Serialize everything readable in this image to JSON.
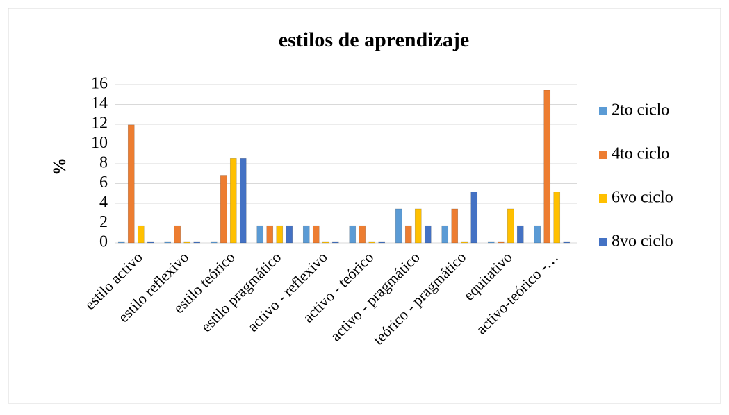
{
  "chart_data": {
    "type": "bar",
    "title": "estilos de aprendizaje",
    "y_label": "%",
    "categories": [
      "estilo activo",
      "estilo reflexivo",
      "estilo teórico",
      "estilo pragmático",
      "activo - reflexivo",
      "activo - teórico",
      "activo - pragmático",
      "teórico - pragmático",
      "equitativo",
      "activo-teórico -…"
    ],
    "series": [
      {
        "name": "2to ciclo",
        "color": "#5b9bd5",
        "values": [
          0,
          0,
          0,
          1.6,
          1.6,
          1.6,
          3.3,
          1.6,
          0,
          1.6
        ]
      },
      {
        "name": "4to ciclo",
        "color": "#ed7d31",
        "values": [
          11.8,
          1.6,
          6.7,
          1.6,
          1.6,
          1.6,
          1.6,
          3.3,
          0,
          15.3
        ]
      },
      {
        "name": "6vo ciclo",
        "color": "#ffc000",
        "values": [
          1.6,
          0,
          8.4,
          1.6,
          0,
          0,
          3.3,
          0,
          3.3,
          5
        ]
      },
      {
        "name": "8vo ciclo",
        "color": "#4472c4",
        "values": [
          0,
          0,
          8.4,
          1.6,
          0,
          0,
          1.6,
          5,
          1.6,
          0
        ]
      }
    ],
    "ylim": [
      0,
      16
    ],
    "yticks": [
      0,
      2,
      4,
      6,
      8,
      10,
      12,
      14,
      16
    ],
    "grid": true,
    "legend": "right"
  }
}
